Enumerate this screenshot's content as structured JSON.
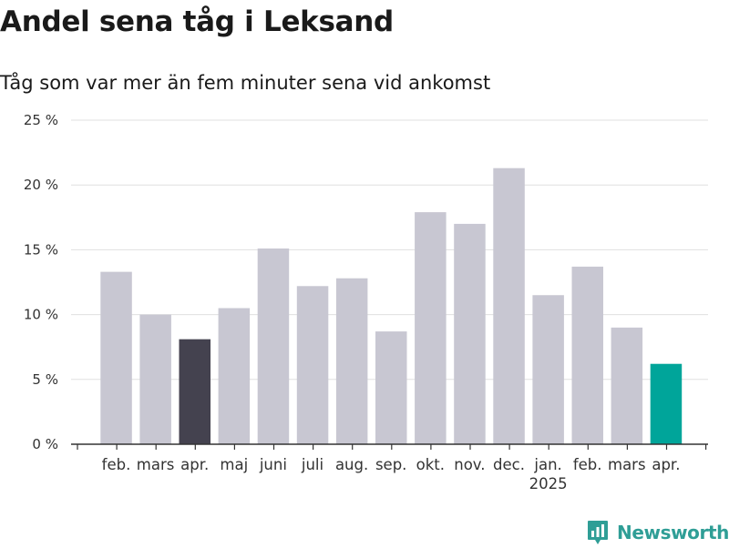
{
  "header": {
    "title": "Andel sena tåg i Leksand",
    "subtitle": "Tåg som var mer än fem minuter sena vid ankomst"
  },
  "footer": {
    "brand": "Newsworthy",
    "brand_icon": "bar-chart-speech-bubble-icon"
  },
  "chart_data": {
    "type": "bar",
    "title": "Andel sena tåg i Leksand",
    "subtitle": "Tåg som var mer än fem minuter sena vid ankomst",
    "xlabel": "",
    "ylabel": "",
    "categories": [
      "feb.",
      "mars",
      "apr.",
      "maj",
      "juni",
      "juli",
      "aug.",
      "sep.",
      "okt.",
      "nov.",
      "dec.",
      "jan.",
      "feb.",
      "mars",
      "apr."
    ],
    "year_labels": [
      "",
      "",
      "",
      "",
      "",
      "",
      "",
      "",
      "",
      "",
      "",
      "2025",
      "",
      "",
      ""
    ],
    "values": [
      13.3,
      10.0,
      8.1,
      10.5,
      15.1,
      12.2,
      12.8,
      8.7,
      17.9,
      17.0,
      21.3,
      11.5,
      13.7,
      9.0,
      6.2
    ],
    "bar_colors": [
      "#c8c7d2",
      "#c8c7d2",
      "#44424f",
      "#c8c7d2",
      "#c8c7d2",
      "#c8c7d2",
      "#c8c7d2",
      "#c8c7d2",
      "#c8c7d2",
      "#c8c7d2",
      "#c8c7d2",
      "#c8c7d2",
      "#c8c7d2",
      "#c8c7d2",
      "#00a59a"
    ],
    "ylim": [
      0,
      25
    ],
    "yticks": [
      0,
      5,
      10,
      15,
      20,
      25
    ],
    "ytick_labels": [
      "0 %",
      "5 %",
      "10 %",
      "15 %",
      "20 %",
      "25 %"
    ],
    "grid": true,
    "legend": "none",
    "colors": {
      "default": "#c8c7d2",
      "reference": "#44424f",
      "highlight": "#00a59a",
      "grid": "#e0e0e0",
      "axis": "#333333",
      "brand": "#2f9e96"
    }
  }
}
